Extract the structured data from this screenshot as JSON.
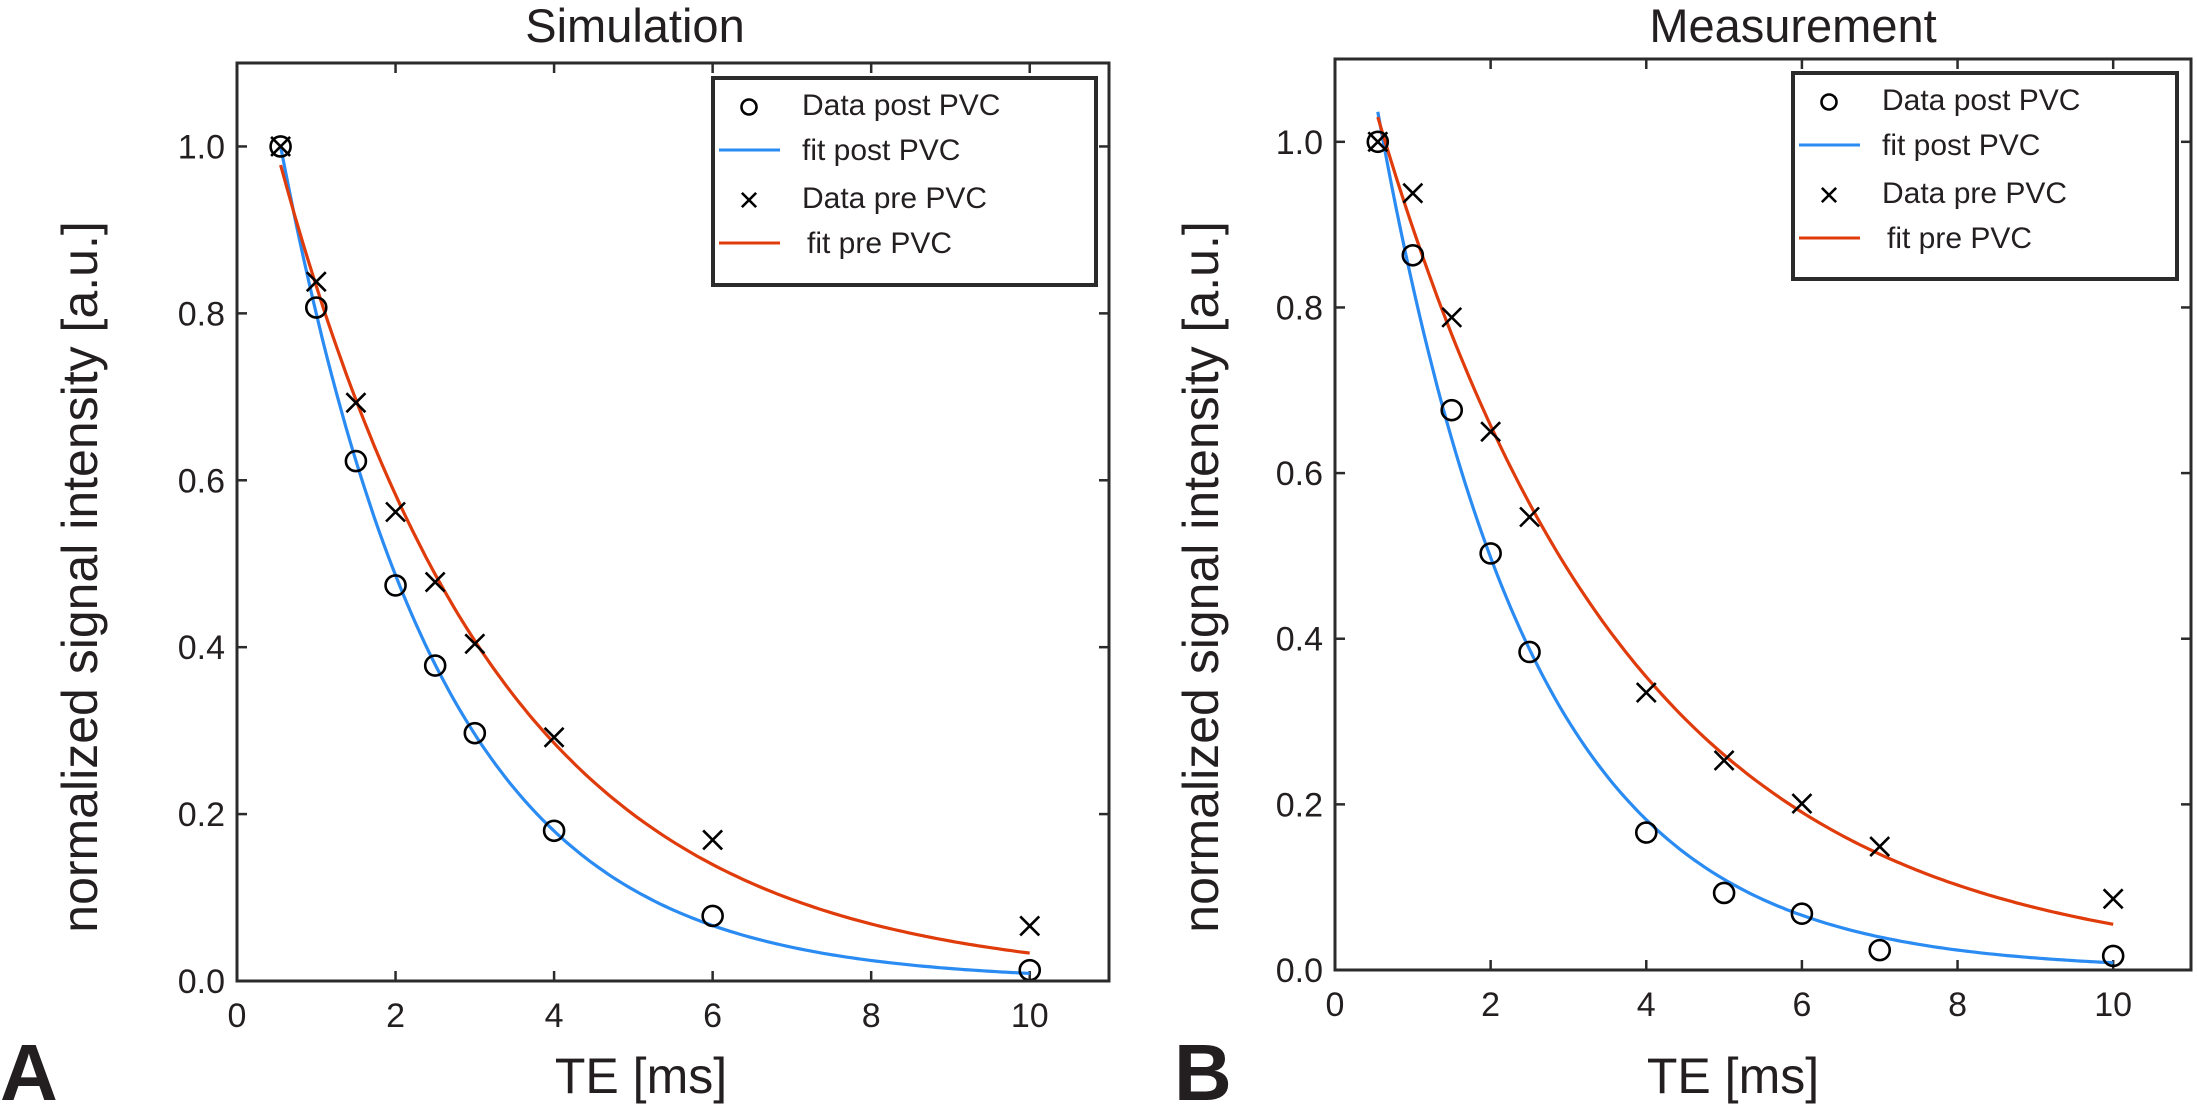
{
  "chart_data": [
    {
      "panel": "A",
      "type": "scatter",
      "title": "Simulation",
      "xlabel": "TE [ms]",
      "ylabel": "normalized signal intensity [a.u.]",
      "xlim": [
        0,
        11
      ],
      "ylim": [
        0,
        1.1
      ],
      "xticks": [
        0,
        2,
        4,
        6,
        8,
        10
      ],
      "xtick_labels": [
        "0",
        "2",
        "4",
        "6",
        "8",
        "10"
      ],
      "yticks": [
        0.0,
        0.2,
        0.4,
        0.6,
        0.8,
        1.0
      ],
      "ytick_labels": [
        "0.0",
        "0.2",
        "0.4",
        "0.6",
        "0.8",
        "1.0"
      ],
      "grid": false,
      "legend_position": "top-right",
      "series": [
        {
          "name": "Data post PVC",
          "kind": "marker",
          "marker": "circle",
          "color": "#000000",
          "x": [
            0.55,
            1.0,
            1.5,
            2.0,
            2.5,
            3.0,
            4.0,
            6.0,
            10.0
          ],
          "y": [
            1.0,
            0.807,
            0.623,
            0.474,
            0.378,
            0.297,
            0.18,
            0.078,
            0.013
          ]
        },
        {
          "name": "fit post PVC",
          "kind": "line",
          "color": "#2a8bf2",
          "model": "A*exp(-TE/T2)",
          "params": {
            "A": 1.315,
            "T2": 2.01
          },
          "x_range": [
            0.55,
            10.0
          ]
        },
        {
          "name": "Data pre PVC",
          "kind": "marker",
          "marker": "x",
          "color": "#000000",
          "x": [
            0.55,
            1.0,
            1.5,
            2.0,
            2.5,
            3.0,
            4.0,
            6.0,
            10.0
          ],
          "y": [
            1.0,
            0.838,
            0.693,
            0.562,
            0.478,
            0.404,
            0.292,
            0.169,
            0.066
          ]
        },
        {
          "name": "fit pre PVC",
          "kind": "line",
          "color": "#e03c0b",
          "model": "A*exp(-TE/T2)",
          "params": {
            "A": 1.19,
            "T2": 2.8
          },
          "x_range": [
            0.55,
            10.0
          ]
        }
      ]
    },
    {
      "panel": "B",
      "type": "scatter",
      "title": "Measurement",
      "xlabel": "TE [ms]",
      "ylabel": "normalized signal intensity [a.u.]",
      "xlim": [
        0,
        11
      ],
      "ylim": [
        0,
        1.1
      ],
      "xticks": [
        0,
        2,
        4,
        6,
        8,
        10
      ],
      "xtick_labels": [
        "0",
        "2",
        "4",
        "6",
        "8",
        "10"
      ],
      "yticks": [
        0.0,
        0.2,
        0.4,
        0.6,
        0.8,
        1.0
      ],
      "ytick_labels": [
        "0.0",
        "0.2",
        "0.4",
        "0.6",
        "0.8",
        "1.0"
      ],
      "grid": false,
      "legend_position": "top-right",
      "series": [
        {
          "name": "Data post PVC",
          "kind": "marker",
          "marker": "circle",
          "color": "#000000",
          "x": [
            0.55,
            1.0,
            1.5,
            2.0,
            2.5,
            4.0,
            5.0,
            6.0,
            7.0,
            10.0
          ],
          "y": [
            1.0,
            0.863,
            0.676,
            0.503,
            0.384,
            0.166,
            0.093,
            0.068,
            0.024,
            0.017
          ]
        },
        {
          "name": "fit post PVC",
          "kind": "line",
          "color": "#2a8bf2",
          "model": "A*exp(-TE/T2)",
          "params": {
            "A": 1.368,
            "T2": 1.98
          },
          "x_range": [
            0.55,
            10.0
          ]
        },
        {
          "name": "Data pre PVC",
          "kind": "marker",
          "marker": "x",
          "color": "#000000",
          "x": [
            0.55,
            1.0,
            1.5,
            2.0,
            2.5,
            4.0,
            5.0,
            6.0,
            7.0,
            10.0
          ],
          "y": [
            1.0,
            0.938,
            0.788,
            0.65,
            0.547,
            0.335,
            0.253,
            0.201,
            0.149,
            0.086
          ]
        },
        {
          "name": "fit pre PVC",
          "kind": "line",
          "color": "#e03c0b",
          "model": "A*exp(-TE/T2)",
          "params": {
            "A": 1.221,
            "T2": 3.23
          },
          "x_range": [
            0.55,
            10.0
          ]
        }
      ]
    }
  ]
}
